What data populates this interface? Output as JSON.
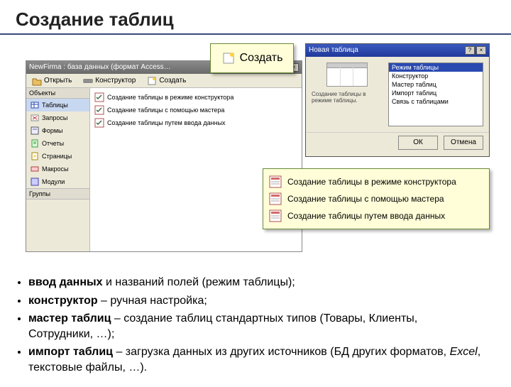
{
  "slide": {
    "title": "Создание таблиц"
  },
  "colors": {
    "highlight_bg": "#fffed8",
    "highlight_border": "#6a8a3a",
    "titlebar_start": "#4a6fd4",
    "titlebar_end": "#2a4ab0"
  },
  "db_window": {
    "title": "NewFirma : база данных (формат Access…",
    "toolbar": {
      "open": "Открыть",
      "design": "Конструктор",
      "create": "Создать"
    },
    "nav_header": "Объекты",
    "nav": [
      {
        "icon": "table",
        "label": "Таблицы",
        "selected": true
      },
      {
        "icon": "query",
        "label": "Запросы"
      },
      {
        "icon": "form",
        "label": "Формы"
      },
      {
        "icon": "report",
        "label": "Отчеты"
      },
      {
        "icon": "page",
        "label": "Страницы"
      },
      {
        "icon": "macro",
        "label": "Макросы"
      },
      {
        "icon": "module",
        "label": "Модули"
      }
    ],
    "nav_footer": "Группы",
    "create_options": [
      "Создание таблицы в режиме конструктора",
      "Создание таблицы с помощью мастера",
      "Создание таблицы путем ввода данных"
    ],
    "winbtns": {
      "min": "_",
      "max": "□",
      "close": "×"
    }
  },
  "hl_create": {
    "label": "Создать"
  },
  "dialog": {
    "title": "Новая таблица",
    "description": "Создание таблицы в режиме таблицы.",
    "list": [
      {
        "label": "Режим таблицы",
        "selected": true
      },
      {
        "label": "Конструктор"
      },
      {
        "label": "Мастер таблиц"
      },
      {
        "label": "Импорт таблиц"
      },
      {
        "label": "Связь с таблицами"
      }
    ],
    "ok": "ОК",
    "cancel": "Отмена",
    "help": "?",
    "close": "×"
  },
  "hl_options": [
    "Создание таблицы в режиме конструктора",
    "Создание таблицы с помощью мастера",
    "Создание таблицы путем ввода данных"
  ],
  "bullets": [
    {
      "strong": "ввод данных",
      "rest": " и названий полей (режим таблицы);"
    },
    {
      "strong": "конструктор",
      "rest": " – ручная настройка;"
    },
    {
      "strong": "мастер таблиц",
      "rest": " – создание таблиц стандартных типов (Товары, Клиенты, Сотрудники, …);"
    },
    {
      "strong": "импорт таблиц",
      "rest": " – загрузка данных из других источников (БД других форматов, ",
      "em": "Excel",
      "rest2": ", текстовые файлы, …)."
    }
  ]
}
